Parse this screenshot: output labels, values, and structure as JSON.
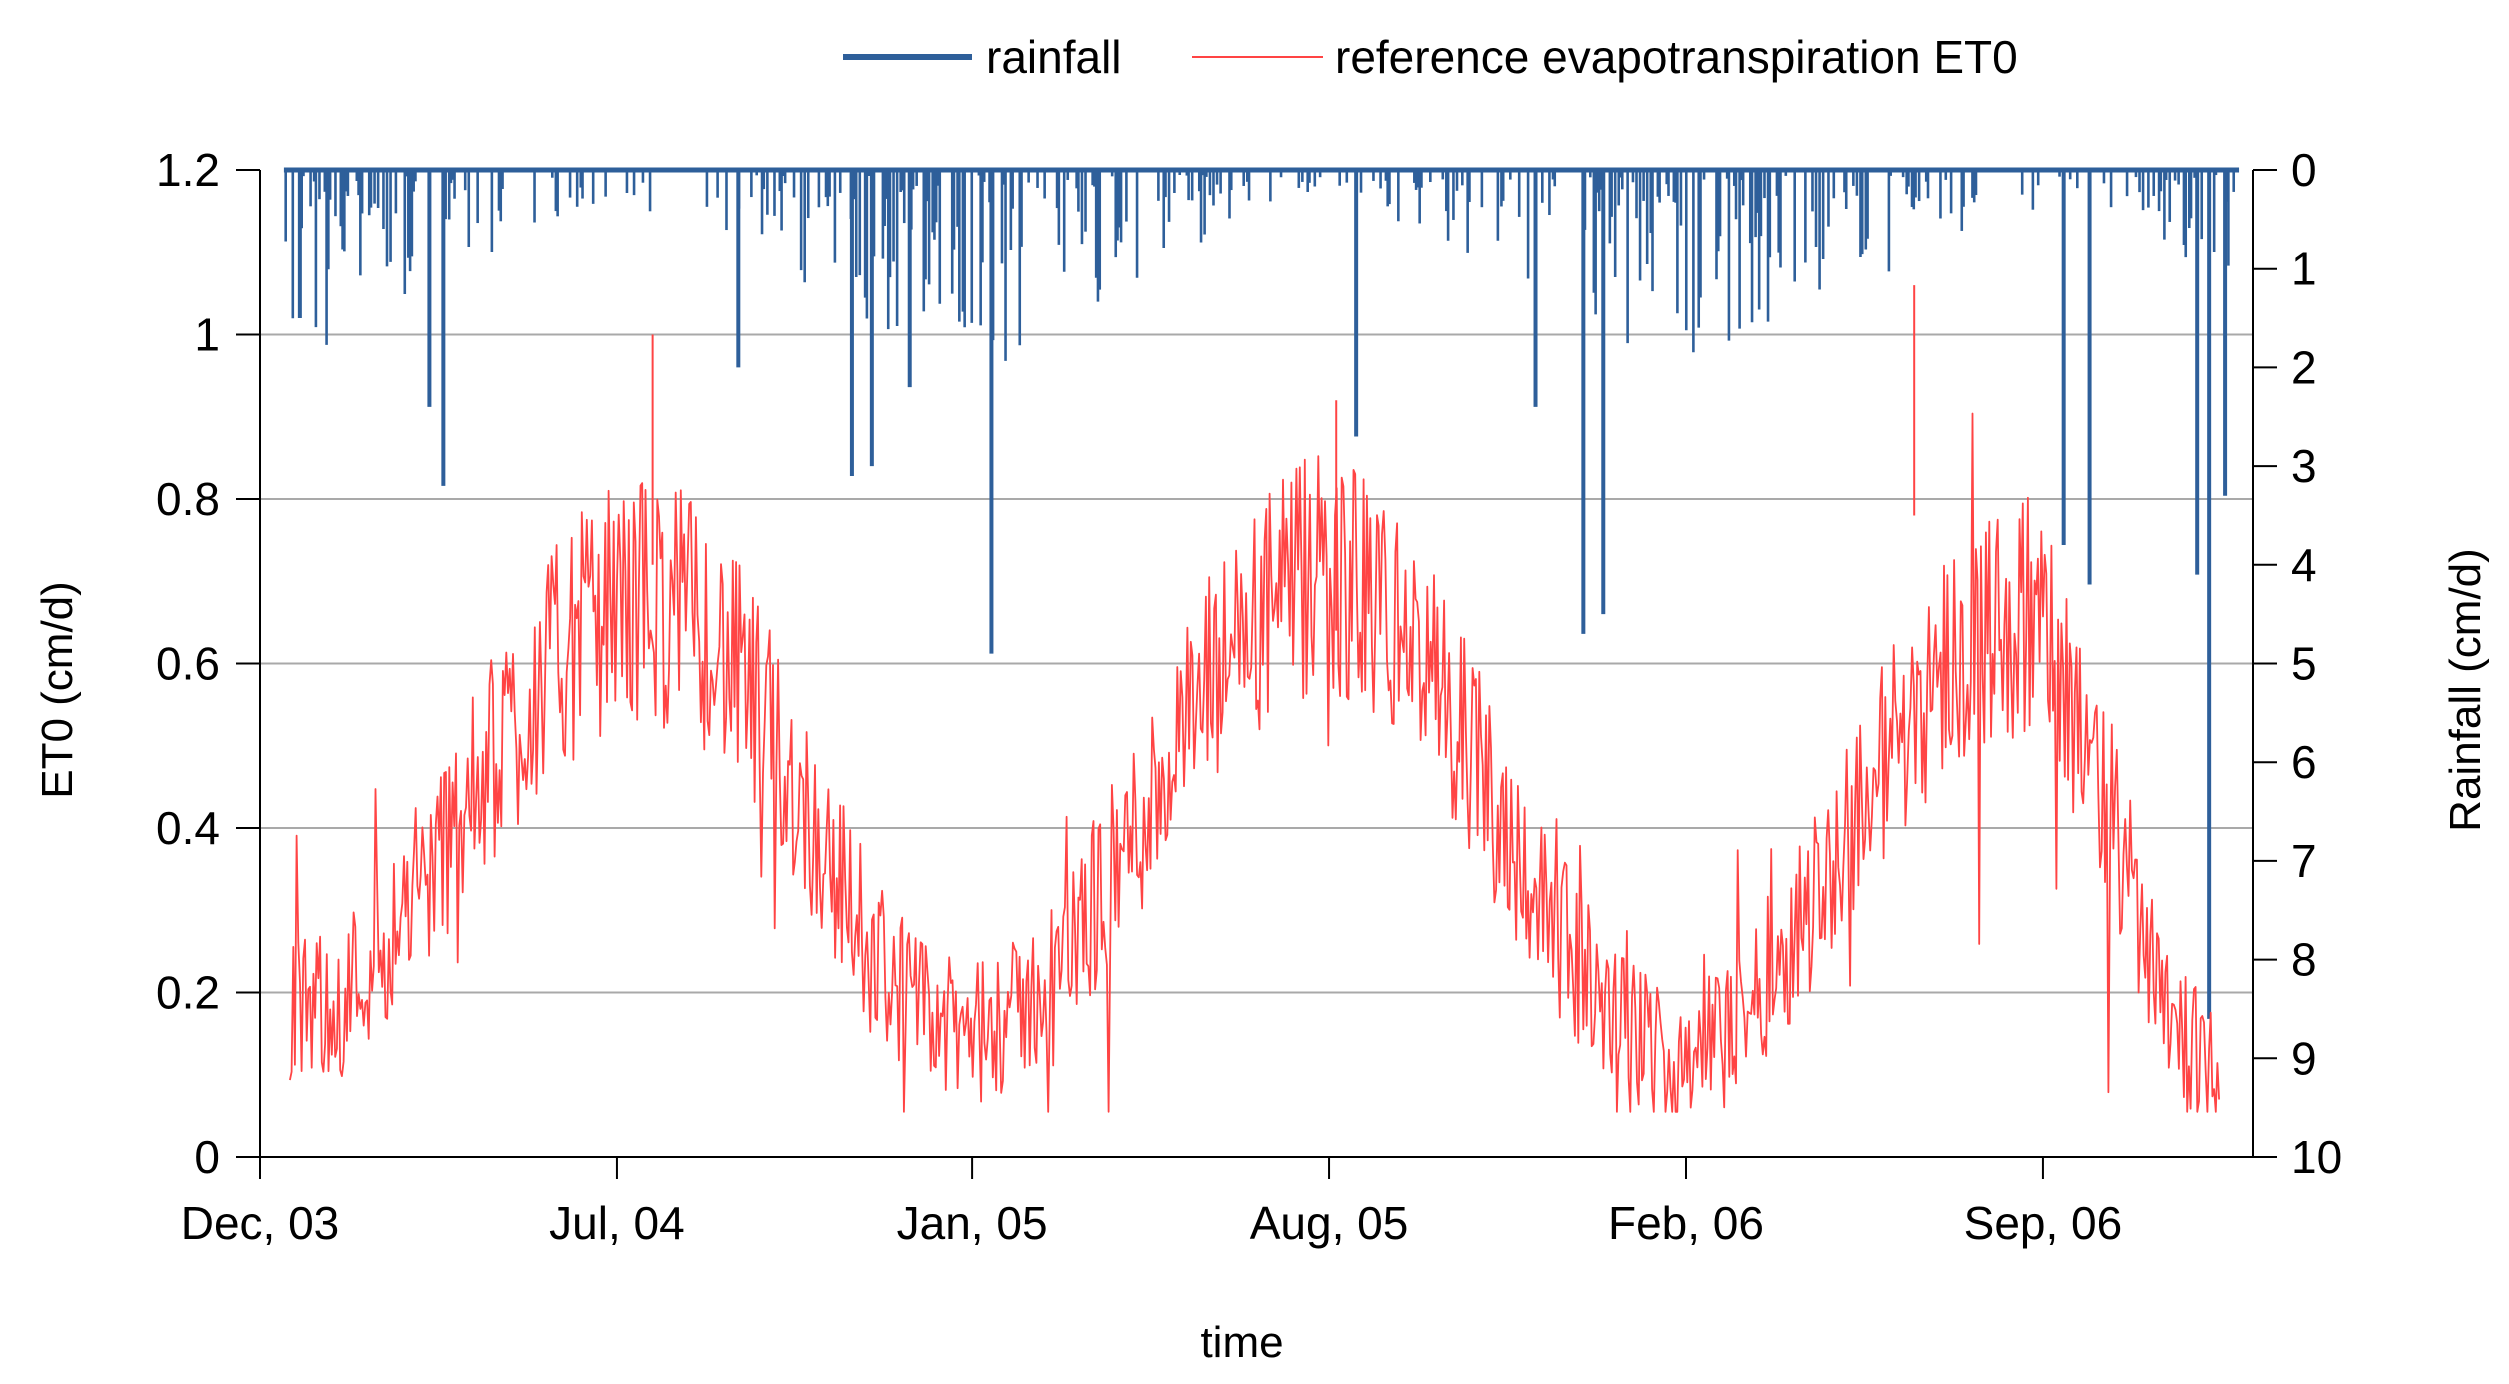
{
  "chart_data": {
    "type": "line",
    "title": "",
    "xlabel": "time",
    "ylabel_left": "ET0 (cm/d)",
    "ylabel_right": "Rainfall (cm/d)",
    "ylim_left": [
      0,
      1.2
    ],
    "ylim_right_inverted": [
      0,
      10
    ],
    "y_ticks_left": [
      "0",
      "0.2",
      "0.4",
      "0.6",
      "0.8",
      "1",
      "1.2"
    ],
    "y_ticks_right": [
      "0",
      "1",
      "2",
      "3",
      "4",
      "5",
      "6",
      "7",
      "8",
      "9",
      "10"
    ],
    "x_ticks": [
      "Dec, 03",
      "Jul, 04",
      "Jan, 05",
      "Aug, 05",
      "Feb, 06",
      "Sep, 06"
    ],
    "grid": "horizontal",
    "legend_position": "top-center",
    "series": [
      {
        "name": "rainfall",
        "color": "#2e5f9a",
        "axis": "right",
        "style": "bars-hanging-from-top",
        "description_daily_peaks_cm": [
          {
            "x_frac": 0.02,
            "value": 1.5
          },
          {
            "x_frac": 0.085,
            "value": 2.4
          },
          {
            "x_frac": 0.092,
            "value": 3.2
          },
          {
            "x_frac": 0.24,
            "value": 2.0
          },
          {
            "x_frac": 0.297,
            "value": 3.1
          },
          {
            "x_frac": 0.307,
            "value": 3.0
          },
          {
            "x_frac": 0.326,
            "value": 2.2
          },
          {
            "x_frac": 0.367,
            "value": 4.9
          },
          {
            "x_frac": 0.55,
            "value": 2.7
          },
          {
            "x_frac": 0.64,
            "value": 2.4
          },
          {
            "x_frac": 0.664,
            "value": 4.7
          },
          {
            "x_frac": 0.674,
            "value": 4.5
          },
          {
            "x_frac": 0.905,
            "value": 3.8
          },
          {
            "x_frac": 0.918,
            "value": 4.2
          },
          {
            "x_frac": 0.972,
            "value": 4.1
          },
          {
            "x_frac": 0.978,
            "value": 8.6
          },
          {
            "x_frac": 0.986,
            "value": 3.3
          }
        ]
      },
      {
        "name": "reference evapotranspiration ET0",
        "color": "#ff4444",
        "axis": "left",
        "style": "line",
        "seasonal_envelope": [
          {
            "date": "Dec, 03",
            "value": 0.17
          },
          {
            "date": "Jul, 04",
            "value": 0.68
          },
          {
            "date": "Jan, 05",
            "value": 0.15
          },
          {
            "date": "Aug, 05",
            "value": 0.7
          },
          {
            "date": "Feb, 06",
            "value": 0.13
          },
          {
            "date": "Sep, 06",
            "value": 0.65
          },
          {
            "date": "end",
            "value": 0.11
          }
        ],
        "notable_peaks": [
          {
            "near": "Jul, 04",
            "value": 1.0
          },
          {
            "near": "Aug, 05",
            "value": 0.92
          },
          {
            "near": "Sep, 06",
            "value": 1.06
          }
        ]
      }
    ]
  }
}
